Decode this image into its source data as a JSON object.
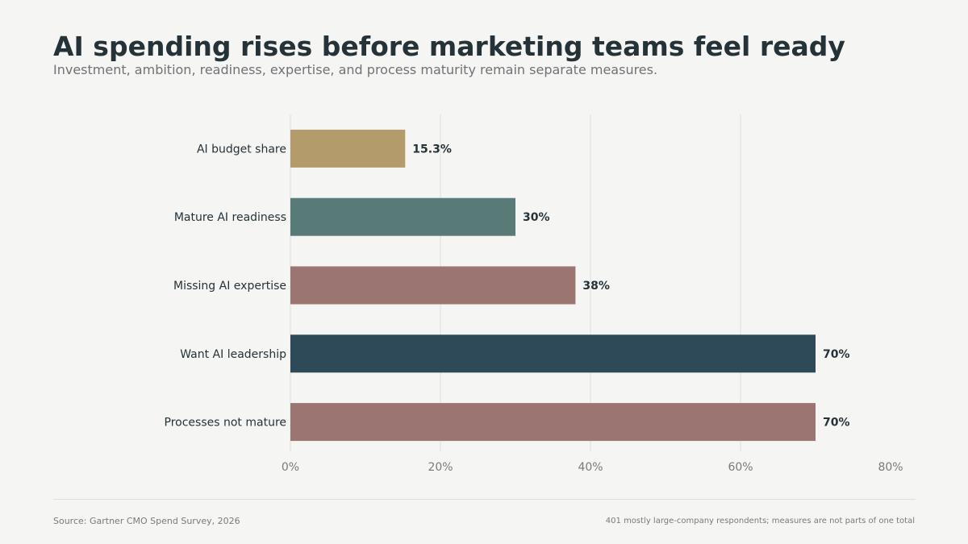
{
  "title": "AI spending rises before marketing teams feel ready",
  "subtitle": "Investment, ambition, readiness, expertise, and process maturity remain separate measures.",
  "chart_data": {
    "type": "bar",
    "orientation": "horizontal",
    "categories": [
      "AI budget share",
      "Mature AI readiness",
      "Missing AI expertise",
      "Want AI leadership",
      "Processes not mature"
    ],
    "values": [
      15.3,
      30,
      38,
      70,
      70
    ],
    "value_labels": [
      "15.3%",
      "30%",
      "38%",
      "70%",
      "70%"
    ],
    "bar_colors": [
      "#b39b6b",
      "#597b77",
      "#9b7571",
      "#2e4a59",
      "#9b7571"
    ],
    "xlim": [
      0,
      80
    ],
    "x_ticks": [
      0,
      20,
      40,
      60,
      80
    ],
    "x_tick_labels": [
      "0%",
      "20%",
      "40%",
      "60%",
      "80%"
    ],
    "grid": "vertical",
    "legend": "none"
  },
  "footer": {
    "source": "Source: Gartner CMO Spend Survey, 2026",
    "note": "401 mostly large-company respondents; measures are not parts of one total"
  },
  "colors": {
    "background": "#f5f5f3",
    "title": "#253238",
    "subtitle": "#6f7374",
    "label": "#253238",
    "tick": "#777b7c",
    "grid": "#dedfdc"
  }
}
